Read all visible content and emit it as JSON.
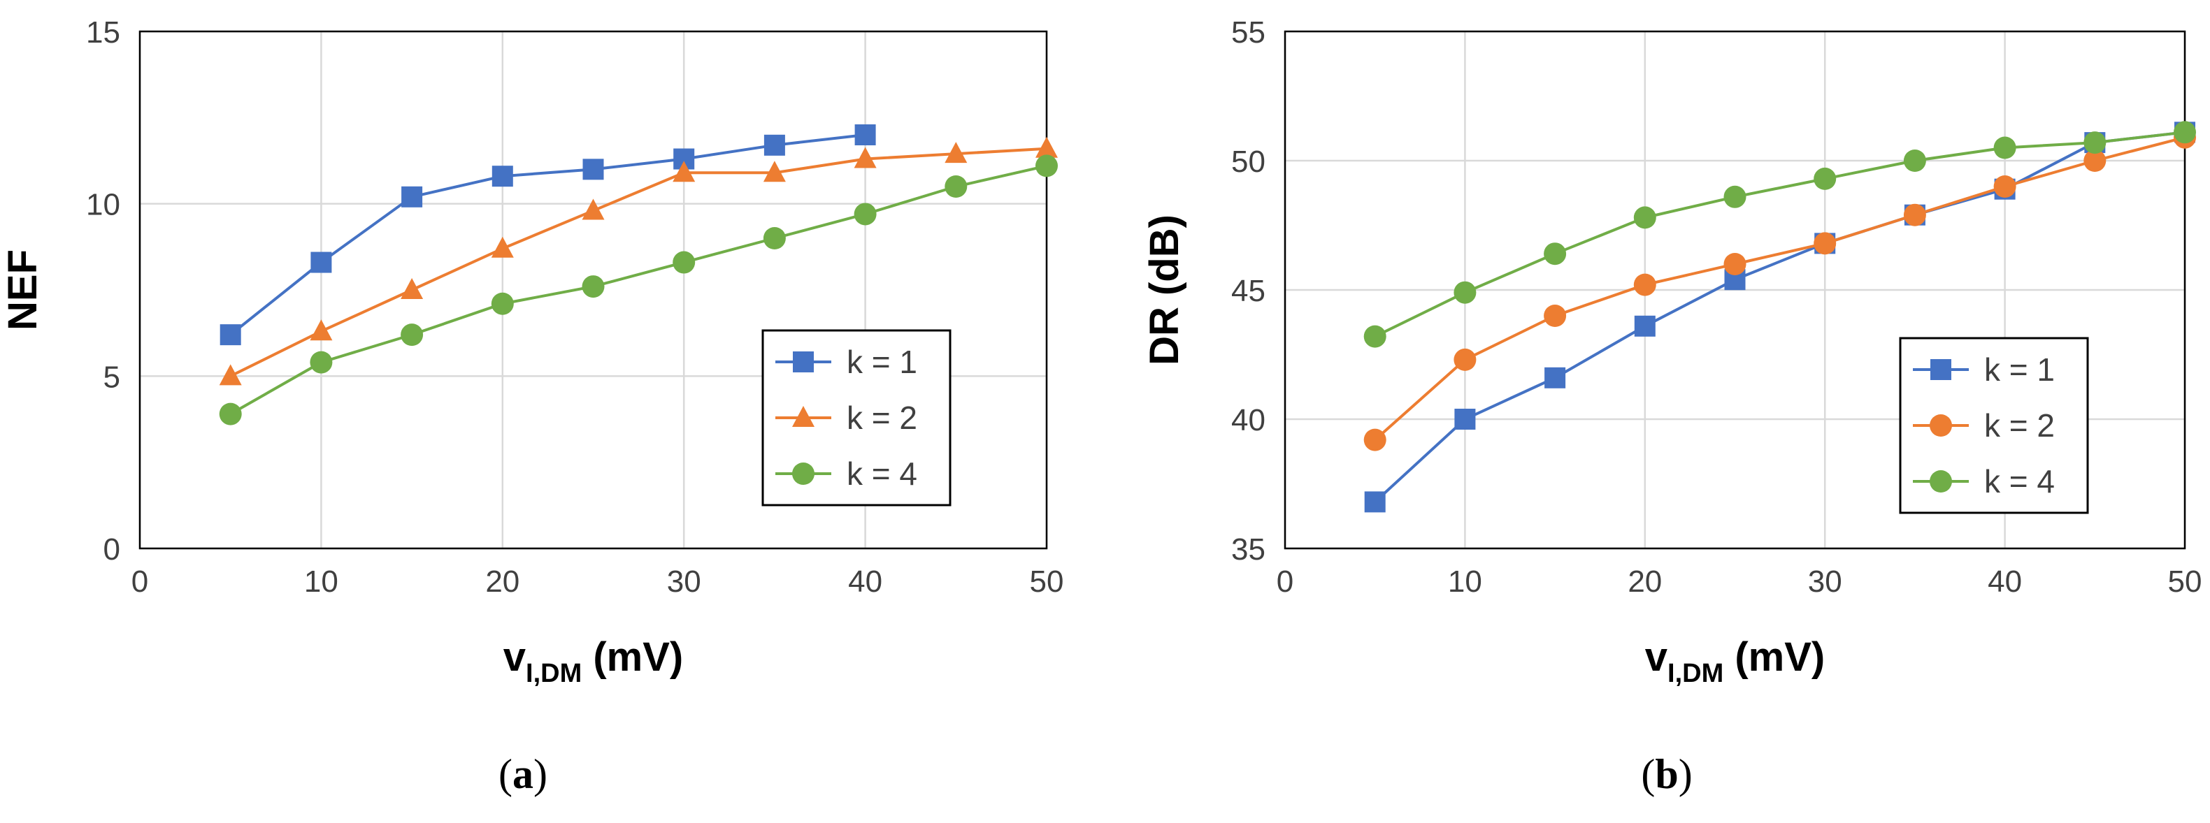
{
  "chart_data": [
    {
      "type": "line",
      "caption": "a",
      "xlabel_main": "v",
      "xlabel_sub": "I,DM",
      "xlabel_unit": " (mV)",
      "ylabel": "NEF",
      "xlim": [
        0,
        50
      ],
      "ylim": [
        0,
        15
      ],
      "xticks": [
        "0",
        "10",
        "20",
        "30",
        "40",
        "50"
      ],
      "yticks": [
        "0",
        "5",
        "10",
        "15"
      ],
      "grid": true,
      "legend_position": "lower-right",
      "series": [
        {
          "name": "k = 1",
          "color": "#4472c4",
          "marker": "square",
          "x": [
            5,
            10,
            15,
            20,
            25,
            30,
            35,
            40
          ],
          "y": [
            6.2,
            8.3,
            10.2,
            10.8,
            11.0,
            11.3,
            11.7,
            12.0
          ]
        },
        {
          "name": "k = 2",
          "color": "#ed7d31",
          "marker": "triangle",
          "x": [
            5,
            10,
            15,
            20,
            25,
            30,
            35,
            40,
            45,
            50
          ],
          "y": [
            5.0,
            6.3,
            7.5,
            8.7,
            9.8,
            10.9,
            10.9,
            11.3,
            11.45,
            11.6
          ]
        },
        {
          "name": "k = 4",
          "color": "#70ad47",
          "marker": "circle",
          "x": [
            5,
            10,
            15,
            20,
            25,
            30,
            35,
            40,
            45,
            50
          ],
          "y": [
            3.9,
            5.4,
            6.2,
            7.1,
            7.6,
            8.3,
            9.0,
            9.7,
            10.5,
            11.1
          ]
        }
      ]
    },
    {
      "type": "line",
      "caption": "b",
      "xlabel_main": "v",
      "xlabel_sub": "I,DM",
      "xlabel_unit": " (mV)",
      "ylabel": "DR (dB)",
      "xlim": [
        0,
        50
      ],
      "ylim": [
        35,
        55
      ],
      "xticks": [
        "0",
        "10",
        "20",
        "30",
        "40",
        "50"
      ],
      "yticks": [
        "35",
        "40",
        "45",
        "50",
        "55"
      ],
      "grid": true,
      "legend_position": "lower-right",
      "series": [
        {
          "name": "k = 1",
          "color": "#4472c4",
          "marker": "square",
          "x": [
            5,
            10,
            15,
            20,
            25,
            30,
            35,
            40,
            45,
            50
          ],
          "y": [
            36.8,
            40.0,
            41.6,
            43.6,
            45.4,
            46.8,
            47.9,
            48.9,
            50.7,
            51.1
          ]
        },
        {
          "name": "k = 2",
          "color": "#ed7d31",
          "marker": "circle",
          "x": [
            5,
            10,
            15,
            20,
            25,
            30,
            35,
            40,
            45,
            50
          ],
          "y": [
            39.2,
            42.3,
            44.0,
            45.2,
            46.0,
            46.8,
            47.9,
            49.0,
            50.0,
            50.9
          ]
        },
        {
          "name": "k = 4",
          "color": "#70ad47",
          "marker": "circle",
          "x": [
            5,
            10,
            15,
            20,
            25,
            30,
            35,
            40,
            45,
            50
          ],
          "y": [
            43.2,
            44.9,
            46.4,
            47.8,
            48.6,
            49.3,
            50.0,
            50.5,
            50.7,
            51.1
          ]
        }
      ]
    }
  ]
}
